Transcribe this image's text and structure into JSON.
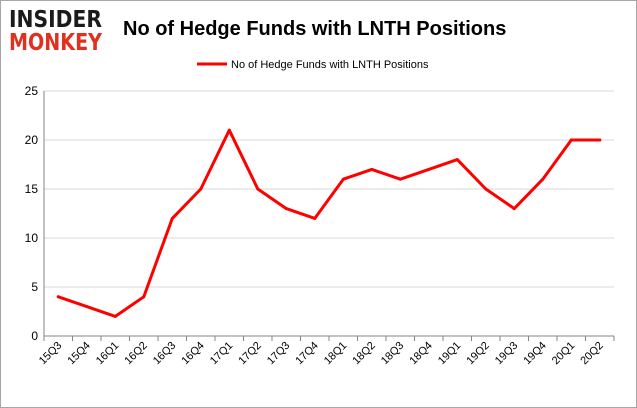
{
  "logo": {
    "line1": "INSIDER",
    "line2": "MONKEY"
  },
  "chart_data": {
    "type": "line",
    "title": "No of Hedge Funds with LNTH Positions",
    "legend": {
      "position": "top-center",
      "label": "No of Hedge Funds with LNTH Positions"
    },
    "categories": [
      "15Q3",
      "15Q4",
      "16Q1",
      "16Q2",
      "16Q3",
      "16Q4",
      "17Q1",
      "17Q2",
      "17Q3",
      "17Q4",
      "18Q1",
      "18Q2",
      "18Q3",
      "18Q4",
      "19Q1",
      "19Q2",
      "19Q3",
      "19Q4",
      "20Q1",
      "20Q2"
    ],
    "series": [
      {
        "name": "No of Hedge Funds with LNTH Positions",
        "color": "#ff0000",
        "values": [
          4,
          3,
          2,
          4,
          12,
          15,
          21,
          15,
          13,
          12,
          16,
          17,
          16,
          17,
          18,
          15,
          13,
          16,
          20,
          20
        ]
      }
    ],
    "ylim": [
      0,
      25
    ],
    "yticks": [
      "0",
      "5",
      "10",
      "15",
      "20",
      "25"
    ],
    "xlabel": "",
    "ylabel": "",
    "grid": true,
    "colors": {
      "title": "#000000",
      "logo_dark": "#1b1b1b",
      "logo_red": "#e0301e",
      "grid": "#d9d9d9"
    }
  }
}
